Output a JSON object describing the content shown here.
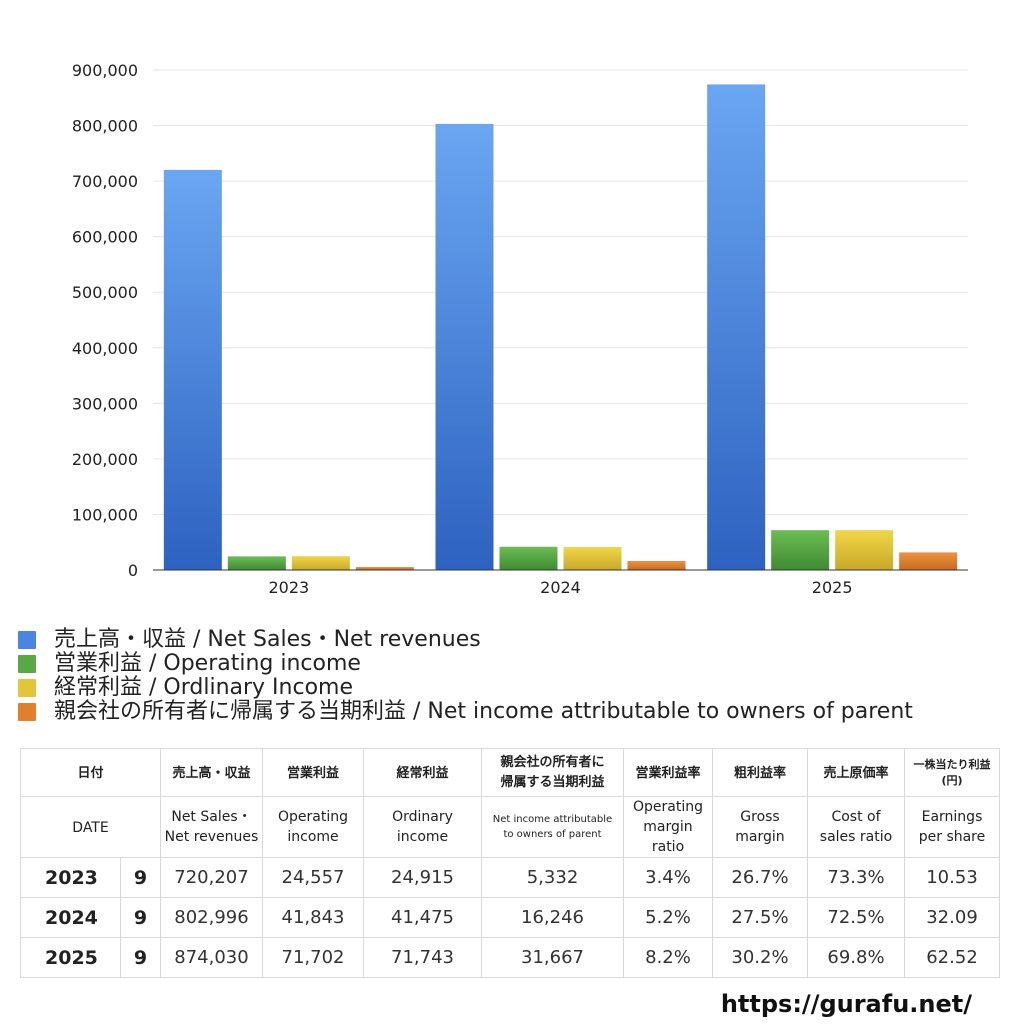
{
  "chart_data": {
    "type": "bar",
    "categories": [
      "2023",
      "2024",
      "2025"
    ],
    "ylim": [
      0,
      900000
    ],
    "yticks": [
      "0",
      "100,000",
      "200,000",
      "300,000",
      "400,000",
      "500,000",
      "600,000",
      "700,000",
      "800,000",
      "900,000"
    ],
    "grid": true,
    "legend_position": "bottom-left",
    "series": [
      {
        "name": "売上高・収益 / Net Sales・Net revenues",
        "values": [
          720207,
          802996,
          874030
        ],
        "color": "#4a86e0",
        "color_top": "#6aa6f2",
        "color_bottom": "#2d62c0"
      },
      {
        "name": "営業利益 / Operating income",
        "values": [
          24557,
          41843,
          71702
        ],
        "color": "#5aa845",
        "color_top": "#6cbd55",
        "color_bottom": "#3f8b32"
      },
      {
        "name": "経常利益 / Ordlinary Income",
        "values": [
          24915,
          41475,
          71743
        ],
        "color": "#e3c53a",
        "color_top": "#f0d648",
        "color_bottom": "#c9a82a"
      },
      {
        "name": "親会社の所有者に帰属する当期利益 / Net income attributable to owners of parent",
        "values": [
          5332,
          16246,
          31667
        ],
        "color": "#e07f2e",
        "color_top": "#ec9340",
        "color_bottom": "#c86a22"
      }
    ]
  },
  "table": {
    "header_jp": {
      "date": "日付",
      "sales": "売上高・収益",
      "op": "営業利益",
      "ord": "経常利益",
      "net_line1": "親会社の所有者に",
      "net_line2": "帰属する当期利益",
      "opm": "営業利益率",
      "gm": "粗利益率",
      "cost": "売上原価率",
      "eps_line1": "一株当たり利益",
      "eps_line2": "(円)"
    },
    "header_en": {
      "date": "DATE",
      "sales_line1": "Net Sales・",
      "sales_line2": "Net revenues",
      "op_line1": "Operating",
      "op_line2": "income",
      "ord_line1": "Ordinary",
      "ord_line2": "income",
      "net_line1": "Net income attributable",
      "net_line2": "to owners of parent",
      "opm_line1": "Operating",
      "opm_line2": "margin",
      "opm_line3": "ratio",
      "gm_line1": "Gross",
      "gm_line2": "margin",
      "cost_line1": "Cost of",
      "cost_line2": "sales ratio",
      "eps_line1": "Earnings",
      "eps_line2": "per share"
    },
    "rows": [
      {
        "year": "2023",
        "month": "9",
        "sales": "720,207",
        "op": "24,557",
        "ord": "24,915",
        "net": "5,332",
        "opm": "3.4%",
        "gm": "26.7%",
        "cost": "73.3%",
        "eps": "10.53"
      },
      {
        "year": "2024",
        "month": "9",
        "sales": "802,996",
        "op": "41,843",
        "ord": "41,475",
        "net": "16,246",
        "opm": "5.2%",
        "gm": "27.5%",
        "cost": "72.5%",
        "eps": "32.09"
      },
      {
        "year": "2025",
        "month": "9",
        "sales": "874,030",
        "op": "71,702",
        "ord": "71,743",
        "net": "31,667",
        "opm": "8.2%",
        "gm": "30.2%",
        "cost": "69.8%",
        "eps": "62.52"
      }
    ]
  },
  "source_url": "https://gurafu.net/"
}
